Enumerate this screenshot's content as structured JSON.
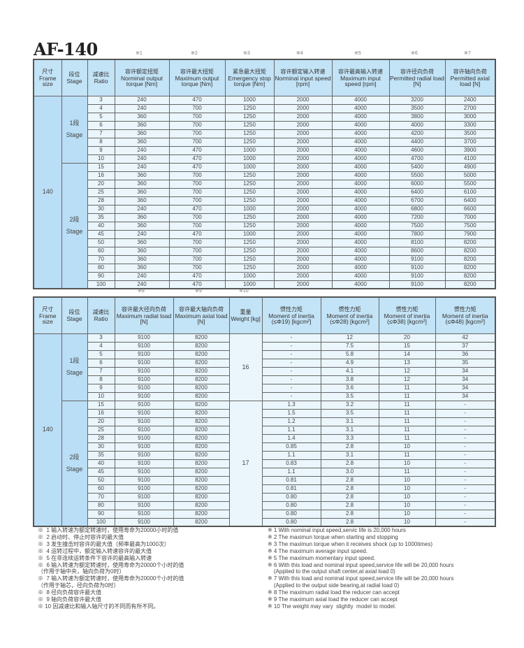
{
  "title": "AF-140",
  "table1": {
    "marks": [
      "※1",
      "※2",
      "※3",
      "※4",
      "※5",
      "※6",
      "※7"
    ],
    "fixed_headers": [
      {
        "cn": "尺寸",
        "en": "Frame size"
      },
      {
        "cn": "段位",
        "en": "Stage"
      },
      {
        "cn": "减速比",
        "en": "Ratio"
      }
    ],
    "headers": [
      {
        "cn": "容许额定扭矩",
        "en": "Norminal output torque [Nm]"
      },
      {
        "cn": "容许最大扭矩",
        "en": "Maximum output torque [Nm]"
      },
      {
        "cn": "紧急最大扭矩",
        "en": "Emergency stop torque [Nm]"
      },
      {
        "cn": "容许额定输入转速",
        "en": "Norminal input speed [rpm]"
      },
      {
        "cn": "容许最高输入转速",
        "en": "Maximum input speed [rpm]"
      },
      {
        "cn": "容许径向负荷",
        "en": "Permitted radial load [N]"
      },
      {
        "cn": "容许轴向负荷",
        "en": "Permitted axial load [N]"
      }
    ],
    "frame": "140",
    "stage1": {
      "cn": "1段",
      "en": "Stage"
    },
    "stage2": {
      "cn": "2段",
      "en": "Stage"
    },
    "rows": [
      [
        "3",
        "240",
        "470",
        "1000",
        "2000",
        "4000",
        "3200",
        "2400"
      ],
      [
        "4",
        "240",
        "700",
        "1250",
        "2000",
        "4000",
        "3500",
        "2700"
      ],
      [
        "5",
        "360",
        "700",
        "1250",
        "2000",
        "4000",
        "3800",
        "3000"
      ],
      [
        "6",
        "360",
        "700",
        "1250",
        "2000",
        "4000",
        "4000",
        "3300"
      ],
      [
        "7",
        "360",
        "700",
        "1250",
        "2000",
        "4000",
        "4200",
        "3500"
      ],
      [
        "8",
        "360",
        "700",
        "1250",
        "2000",
        "4000",
        "4400",
        "3700"
      ],
      [
        "9",
        "240",
        "470",
        "1000",
        "2000",
        "4000",
        "4600",
        "3900"
      ],
      [
        "10",
        "240",
        "470",
        "1000",
        "2000",
        "4000",
        "4700",
        "4100"
      ],
      [
        "15",
        "240",
        "470",
        "1000",
        "2000",
        "4000",
        "5400",
        "4900"
      ],
      [
        "16",
        "360",
        "700",
        "1250",
        "2000",
        "4000",
        "5500",
        "5000"
      ],
      [
        "20",
        "360",
        "700",
        "1250",
        "2000",
        "4000",
        "6000",
        "5500"
      ],
      [
        "25",
        "360",
        "700",
        "1250",
        "2000",
        "4000",
        "6400",
        "6100"
      ],
      [
        "28",
        "360",
        "700",
        "1250",
        "2000",
        "4000",
        "6700",
        "6400"
      ],
      [
        "30",
        "240",
        "470",
        "1000",
        "2000",
        "4000",
        "6800",
        "6600"
      ],
      [
        "35",
        "360",
        "700",
        "1250",
        "2000",
        "4000",
        "7200",
        "7000"
      ],
      [
        "40",
        "360",
        "700",
        "1250",
        "2000",
        "4000",
        "7500",
        "7500"
      ],
      [
        "45",
        "240",
        "470",
        "1000",
        "2000",
        "4000",
        "7800",
        "7900"
      ],
      [
        "50",
        "360",
        "700",
        "1250",
        "2000",
        "4000",
        "8100",
        "8200"
      ],
      [
        "60",
        "360",
        "700",
        "1250",
        "2000",
        "4000",
        "8600",
        "8200"
      ],
      [
        "70",
        "360",
        "700",
        "1250",
        "2000",
        "4000",
        "9100",
        "8200"
      ],
      [
        "80",
        "360",
        "700",
        "1250",
        "2000",
        "4000",
        "9100",
        "8200"
      ],
      [
        "90",
        "240",
        "470",
        "1000",
        "2000",
        "4000",
        "9100",
        "8200"
      ],
      [
        "100",
        "240",
        "470",
        "1000",
        "2000",
        "4000",
        "9100",
        "8200"
      ]
    ]
  },
  "table2": {
    "marks": [
      "※8",
      "※9",
      "※10"
    ],
    "headers": [
      {
        "cn": "容许最大径向负荷",
        "en": "Maximum radial load [N]"
      },
      {
        "cn": "容许最大轴向负荷",
        "en": "Maximum axial load [N]"
      },
      {
        "cn": "重量",
        "en": "Weight [kg]"
      },
      {
        "cn": "惯性力矩",
        "en": "Moment of inertia (≤Φ19) [kgcm²]"
      },
      {
        "cn": "惯性力矩",
        "en": "Moment of inertia (≤Φ28) [kgcm²]"
      },
      {
        "cn": "惯性力矩",
        "en": "Moment of inertia (≤Φ38) [kgcm²]"
      },
      {
        "cn": "惯性力矩",
        "en": "Moment of inertia (≤Φ48) [kgcm²]"
      }
    ],
    "weight_stage1": "16",
    "weight_stage2": "17",
    "rows": [
      [
        "3",
        "9100",
        "8200",
        "-",
        "12",
        "20",
        "42"
      ],
      [
        "4",
        "9100",
        "8200",
        "-",
        "7.5",
        "15",
        "37"
      ],
      [
        "5",
        "9100",
        "8200",
        "-",
        "5.8",
        "14",
        "36"
      ],
      [
        "6",
        "9100",
        "8200",
        "-",
        "4.9",
        "13",
        "35"
      ],
      [
        "7",
        "9100",
        "8200",
        "-",
        "4.1",
        "12",
        "34"
      ],
      [
        "8",
        "9100",
        "8200",
        "-",
        "3.8",
        "12",
        "34"
      ],
      [
        "9",
        "9100",
        "8200",
        "-",
        "3.6",
        "11",
        "34"
      ],
      [
        "10",
        "9100",
        "8200",
        "-",
        "3.5",
        "11",
        "34"
      ],
      [
        "15",
        "9100",
        "8200",
        "1.3",
        "3.2",
        "11",
        "-"
      ],
      [
        "16",
        "9100",
        "8200",
        "1.5",
        "3.5",
        "11",
        "-"
      ],
      [
        "20",
        "9100",
        "8200",
        "1.2",
        "3.1",
        "11",
        "-"
      ],
      [
        "25",
        "9100",
        "8200",
        "1.1",
        "3.1",
        "11",
        "-"
      ],
      [
        "28",
        "9100",
        "8200",
        "1.4",
        "3.3",
        "11",
        "-"
      ],
      [
        "30",
        "9100",
        "8200",
        "0.85",
        "2.8",
        "10",
        "-"
      ],
      [
        "35",
        "9100",
        "8200",
        "1.1",
        "3.1",
        "11",
        "-"
      ],
      [
        "40",
        "9100",
        "8200",
        "0.83",
        "2.8",
        "10",
        "-"
      ],
      [
        "45",
        "9100",
        "8200",
        "1.1",
        "3.0",
        "11",
        "-"
      ],
      [
        "50",
        "9100",
        "8200",
        "0.81",
        "2.8",
        "10",
        "-"
      ],
      [
        "60",
        "9100",
        "8200",
        "0.81",
        "2.8",
        "10",
        "-"
      ],
      [
        "70",
        "9100",
        "8200",
        "0.80",
        "2.8",
        "10",
        "-"
      ],
      [
        "80",
        "9100",
        "8200",
        "0.80",
        "2.8",
        "10",
        "-"
      ],
      [
        "90",
        "9100",
        "8200",
        "0.80",
        "2.8",
        "10",
        "-"
      ],
      [
        "100",
        "9100",
        "8200",
        "0.80",
        "2.8",
        "10",
        "-"
      ]
    ]
  },
  "notes_cn": [
    "※  1 输入转速为额定转速时，使用寿命为20000小时的值",
    "※  2 启动时、停止时容许的最大值",
    "※  3 发生撞击时容许的最大值（频率最高为1000次）",
    "※  4 运转过程中，额定输入转速容许的最大值",
    "※  5 在非连续运转条件下容许的最高输入转速",
    "※  6 输入转速为额定转速时，使用寿命为20000个小时的值",
    "（作用于轴中央，轴向负荷为0时）",
    "※  7 输入转速为额定转速时，使用寿命为20000个小时的值",
    "（作用于轴芯，径向负荷为0时）",
    "※  8 径向负荷容许最大值",
    "※  9 轴向负荷容许最大值",
    "※ 10 因减速比和输入轴尺寸的不同而有所不同。"
  ],
  "notes_en": [
    "※ 1 With nominal input speed,servic life is 20,000 hours",
    "※ 2 The maximun torque when starting and stopping",
    "※ 3 The maximun torque when it receives shock (up to 1000times)",
    "※ 4 The maximum average input speed.",
    "※ 5 The maximum momentary input speed.",
    "※ 6 With this load and nominal input speed,service life will be 20,000 hours",
    "    (Applied to the output shaft center,at axial load 0)",
    "※ 7 With this load and nominal input speed,service life will be 20,000 hours",
    "    (Applied to the output side bearing,at radial load 0)",
    "※ 8 The maximum radial load the reducer can accept",
    "※ 9 The maximum axial load the reducer can accept",
    "※ 10 The weight may vary  slightly  model to model."
  ]
}
